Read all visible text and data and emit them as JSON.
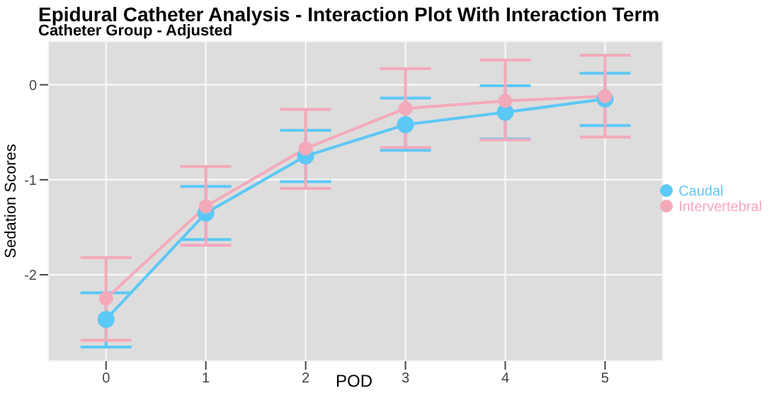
{
  "chart_data": {
    "type": "line",
    "title": "Epidural Catheter Analysis - Interaction Plot With Interaction Term",
    "subtitle": "Catheter Group - Adjusted",
    "xlabel": "POD",
    "ylabel": "Sedation Scores",
    "x": [
      0,
      1,
      2,
      3,
      4,
      5
    ],
    "xlim": [
      -0.58,
      5.58
    ],
    "xticks": [
      0,
      1,
      2,
      3,
      4,
      5
    ],
    "ylim": [
      -2.91,
      0.46
    ],
    "yticks": [
      -2,
      -1,
      0
    ],
    "series": [
      {
        "name": "Caudal",
        "color": "#5bc8f5",
        "values": [
          -2.47,
          -1.35,
          -0.75,
          -0.42,
          -0.29,
          -0.15
        ],
        "errors": [
          [
            -2.76,
            -2.19
          ],
          [
            -1.63,
            -1.07
          ],
          [
            -1.02,
            -0.48
          ],
          [
            -0.69,
            -0.14
          ],
          [
            -0.57,
            -0.01
          ],
          [
            -0.43,
            0.12
          ]
        ]
      },
      {
        "name": "Intervertebral",
        "color": "#f4a9bb",
        "values": [
          -2.25,
          -1.28,
          -0.67,
          -0.25,
          -0.17,
          -0.12
        ],
        "errors": [
          [
            -2.69,
            -1.82
          ],
          [
            -1.69,
            -0.86
          ],
          [
            -1.09,
            -0.26
          ],
          [
            -0.66,
            0.17
          ],
          [
            -0.58,
            0.26
          ],
          [
            -0.55,
            0.31
          ]
        ]
      }
    ],
    "grid": true,
    "legend": "right",
    "marker": "circle",
    "line_style": "solid"
  }
}
